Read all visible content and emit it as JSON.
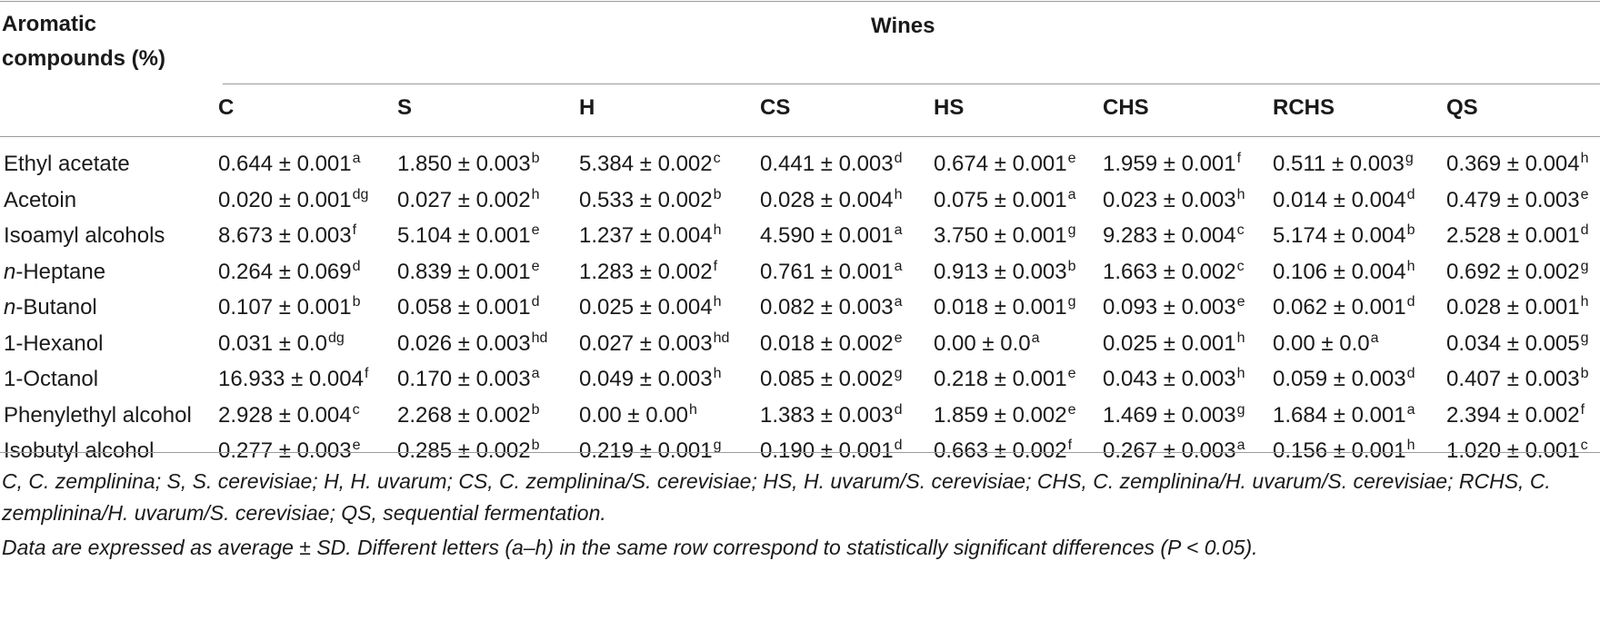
{
  "table": {
    "header": {
      "row_label_line1": "Aromatic",
      "row_label_line2": "compounds (%)",
      "group_label": "Wines",
      "columns": [
        "C",
        "S",
        "H",
        "CS",
        "HS",
        "CHS",
        "RCHS",
        "QS"
      ]
    },
    "rows": [
      {
        "label": "Ethyl acetate",
        "label_prefix": "",
        "cells": [
          {
            "v": "0.644 ± 0.001",
            "s": "a"
          },
          {
            "v": "1.850 ± 0.003",
            "s": "b"
          },
          {
            "v": "5.384 ± 0.002",
            "s": "c"
          },
          {
            "v": "0.441 ± 0.003",
            "s": "d"
          },
          {
            "v": "0.674 ± 0.001",
            "s": "e"
          },
          {
            "v": "1.959 ± 0.001",
            "s": "f"
          },
          {
            "v": "0.511 ± 0.003",
            "s": "g"
          },
          {
            "v": "0.369 ± 0.004",
            "s": "h"
          }
        ]
      },
      {
        "label": "Acetoin",
        "label_prefix": "",
        "cells": [
          {
            "v": "0.020 ± 0.001",
            "s": "dg"
          },
          {
            "v": "0.027 ± 0.002",
            "s": "h"
          },
          {
            "v": "0.533 ± 0.002",
            "s": "b"
          },
          {
            "v": "0.028 ± 0.004",
            "s": "h"
          },
          {
            "v": "0.075 ± 0.001",
            "s": "a"
          },
          {
            "v": "0.023 ± 0.003",
            "s": "h"
          },
          {
            "v": "0.014 ± 0.004",
            "s": "d"
          },
          {
            "v": "0.479 ± 0.003",
            "s": "e"
          }
        ]
      },
      {
        "label": "Isoamyl alcohols",
        "label_prefix": "",
        "cells": [
          {
            "v": "8.673 ± 0.003",
            "s": "f"
          },
          {
            "v": "5.104 ± 0.001",
            "s": "e"
          },
          {
            "v": "1.237 ± 0.004",
            "s": "h"
          },
          {
            "v": "4.590 ± 0.001",
            "s": "a"
          },
          {
            "v": "3.750 ± 0.001",
            "s": "g"
          },
          {
            "v": "9.283 ± 0.004",
            "s": "c"
          },
          {
            "v": "5.174 ± 0.004",
            "s": "b"
          },
          {
            "v": "2.528 ± 0.001",
            "s": "d"
          }
        ]
      },
      {
        "label": "-Heptane",
        "label_prefix": "n",
        "cells": [
          {
            "v": "0.264 ± 0.069",
            "s": "d"
          },
          {
            "v": "0.839 ± 0.001",
            "s": "e"
          },
          {
            "v": "1.283 ± 0.002",
            "s": "f"
          },
          {
            "v": "0.761 ± 0.001",
            "s": "a"
          },
          {
            "v": "0.913 ± 0.003",
            "s": "b"
          },
          {
            "v": "1.663 ± 0.002",
            "s": "c"
          },
          {
            "v": "0.106 ± 0.004",
            "s": "h"
          },
          {
            "v": "0.692 ± 0.002",
            "s": "g"
          }
        ]
      },
      {
        "label": "-Butanol",
        "label_prefix": "n",
        "cells": [
          {
            "v": "0.107 ± 0.001",
            "s": "b"
          },
          {
            "v": "0.058 ± 0.001",
            "s": "d"
          },
          {
            "v": "0.025 ± 0.004",
            "s": "h"
          },
          {
            "v": "0.082 ± 0.003",
            "s": "a"
          },
          {
            "v": "0.018 ± 0.001",
            "s": "g"
          },
          {
            "v": "0.093 ± 0.003",
            "s": "e"
          },
          {
            "v": "0.062 ± 0.001",
            "s": "d"
          },
          {
            "v": "0.028 ± 0.001",
            "s": "h"
          }
        ]
      },
      {
        "label": "1-Hexanol",
        "label_prefix": "",
        "cells": [
          {
            "v": "0.031 ± 0.0",
            "s": "dg"
          },
          {
            "v": "0.026 ± 0.003",
            "s": "hd"
          },
          {
            "v": "0.027 ± 0.003",
            "s": "hd"
          },
          {
            "v": "0.018 ± 0.002",
            "s": "e"
          },
          {
            "v": "0.00 ± 0.0",
            "s": "a"
          },
          {
            "v": "0.025 ± 0.001",
            "s": "h"
          },
          {
            "v": "0.00 ± 0.0",
            "s": "a"
          },
          {
            "v": "0.034 ± 0.005",
            "s": "g"
          }
        ]
      },
      {
        "label": "1-Octanol",
        "label_prefix": "",
        "cells": [
          {
            "v": "16.933 ± 0.004",
            "s": "f"
          },
          {
            "v": "0.170 ± 0.003",
            "s": "a"
          },
          {
            "v": "0.049 ± 0.003",
            "s": "h"
          },
          {
            "v": "0.085 ± 0.002",
            "s": "g"
          },
          {
            "v": "0.218 ± 0.001",
            "s": "e"
          },
          {
            "v": "0.043 ± 0.003",
            "s": "h"
          },
          {
            "v": "0.059 ± 0.003",
            "s": "d"
          },
          {
            "v": "0.407 ± 0.003",
            "s": "b"
          }
        ]
      },
      {
        "label": "Phenylethyl alcohol",
        "label_prefix": "",
        "cells": [
          {
            "v": "2.928 ± 0.004",
            "s": "c"
          },
          {
            "v": "2.268 ± 0.002",
            "s": "b"
          },
          {
            "v": "0.00 ± 0.00",
            "s": "h"
          },
          {
            "v": "1.383 ± 0.003",
            "s": "d"
          },
          {
            "v": "1.859 ± 0.002",
            "s": "e"
          },
          {
            "v": "1.469 ± 0.003",
            "s": "g"
          },
          {
            "v": "1.684 ± 0.001",
            "s": "a"
          },
          {
            "v": "2.394 ± 0.002",
            "s": "f"
          }
        ]
      },
      {
        "label": "Isobutyl alcohol",
        "label_prefix": "",
        "cells": [
          {
            "v": "0.277 ± 0.003",
            "s": "e"
          },
          {
            "v": "0.285 ± 0.002",
            "s": "b"
          },
          {
            "v": "0.219 ± 0.001",
            "s": "g"
          },
          {
            "v": "0.190 ± 0.001",
            "s": "d"
          },
          {
            "v": "0.663 ± 0.002",
            "s": "f"
          },
          {
            "v": "0.267 ± 0.003",
            "s": "a"
          },
          {
            "v": "0.156 ± 0.001",
            "s": "h"
          },
          {
            "v": "1.020 ± 0.001",
            "s": "c"
          }
        ]
      }
    ]
  },
  "footnotes": {
    "line1": "C, C. zemplinina; S, S. cerevisiae; H, H. uvarum; CS, C. zemplinina/S. cerevisiae; HS, H. uvarum/S. cerevisiae; CHS, C. zemplinina/H. uvarum/S. cerevisiae; RCHS, C.",
    "line2": "zemplinina/H. uvarum/S. cerevisiae; QS, sequential fermentation.",
    "line3": "Data are expressed as average ± SD. Different letters (a–h) in the same row correspond to statistically significant differences (P < 0.05)."
  }
}
